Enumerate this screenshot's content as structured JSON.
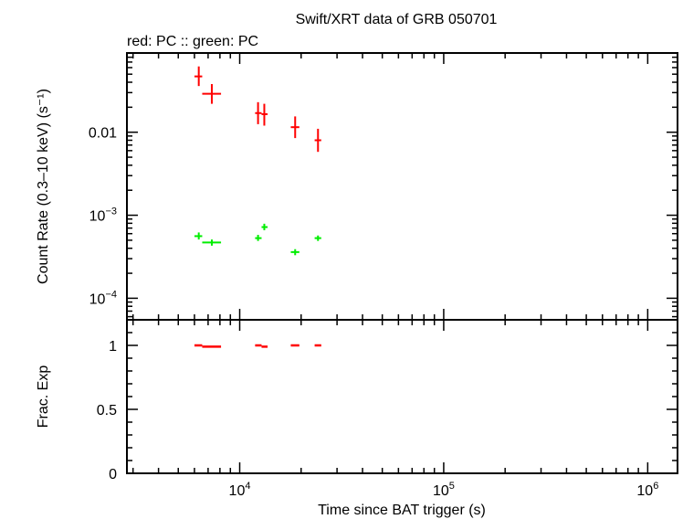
{
  "chart_data": [
    {
      "type": "scatter",
      "title": "Swift/XRT data of GRB 050701",
      "subtitle": "red: PC  :: green: PC",
      "xlabel": "Time since BAT trigger (s)",
      "ylabel": "Count Rate (0.3–10 keV) (s⁻¹)",
      "xscale": "log",
      "yscale": "log",
      "xlim": [
        2800,
        1400000
      ],
      "ylim": [
        5.5e-05,
        0.09
      ],
      "x_ticks": [
        {
          "value": 10000,
          "mantissa": "10",
          "exponent": "4"
        },
        {
          "value": 100000,
          "mantissa": "10",
          "exponent": "5"
        },
        {
          "value": 1000000,
          "mantissa": "10",
          "exponent": "6"
        }
      ],
      "y_ticks": [
        {
          "value": 0.01,
          "mantissa": "0.01",
          "exponent": ""
        },
        {
          "value": 0.001,
          "mantissa": "10",
          "exponent": "−3"
        },
        {
          "value": 0.0001,
          "mantissa": "10",
          "exponent": "−4"
        }
      ],
      "series": [
        {
          "color": "#ff0000",
          "points": [
            {
              "x": 6300,
              "xerr": [
                6000,
                6550
              ],
              "y": 0.047,
              "yerr": [
                0.036,
                0.062
              ]
            },
            {
              "x": 7300,
              "xerr": [
                6550,
                8100
              ],
              "y": 0.029,
              "yerr": [
                0.022,
                0.038
              ]
            },
            {
              "x": 12300,
              "xerr": [
                11900,
                12800
              ],
              "y": 0.017,
              "yerr": [
                0.0125,
                0.023
              ]
            },
            {
              "x": 13200,
              "xerr": [
                12800,
                13700
              ],
              "y": 0.0165,
              "yerr": [
                0.012,
                0.022
              ]
            },
            {
              "x": 18700,
              "xerr": [
                17800,
                19600
              ],
              "y": 0.0115,
              "yerr": [
                0.0085,
                0.0155
              ]
            },
            {
              "x": 24200,
              "xerr": [
                23300,
                25100
              ],
              "y": 0.008,
              "yerr": [
                0.0058,
                0.011
              ]
            }
          ]
        },
        {
          "color": "#00ee00",
          "points": [
            {
              "x": 6300,
              "xerr": [
                6000,
                6550
              ],
              "y": 0.00056,
              "yerr": [
                0.00051,
                0.00062
              ]
            },
            {
              "x": 7300,
              "xerr": [
                6550,
                8100
              ],
              "y": 0.00047,
              "yerr": [
                0.00043,
                0.00051
              ]
            },
            {
              "x": 12300,
              "xerr": [
                11900,
                12800
              ],
              "y": 0.00053,
              "yerr": [
                0.00049,
                0.00058
              ]
            },
            {
              "x": 13200,
              "xerr": [
                12800,
                13700
              ],
              "y": 0.00072,
              "yerr": [
                0.00066,
                0.00079
              ]
            },
            {
              "x": 18700,
              "xerr": [
                17800,
                19600
              ],
              "y": 0.00036,
              "yerr": [
                0.00033,
                0.00039
              ]
            },
            {
              "x": 24200,
              "xerr": [
                23300,
                25100
              ],
              "y": 0.00053,
              "yerr": [
                0.00049,
                0.00057
              ]
            }
          ]
        }
      ]
    },
    {
      "type": "scatter",
      "xlabel": "Time since BAT trigger (s)",
      "ylabel": "Frac. Exp",
      "xscale": "log",
      "yscale": "linear",
      "xlim": [
        2800,
        1400000
      ],
      "ylim": [
        0,
        1.2
      ],
      "y_ticks": [
        {
          "value": 0,
          "label": "0"
        },
        {
          "value": 0.5,
          "label": "0.5"
        },
        {
          "value": 1,
          "label": "1"
        }
      ],
      "series": [
        {
          "color": "#ff0000",
          "points": [
            {
              "x": 6300,
              "xerr": [
                6000,
                6550
              ],
              "y": 1.0
            },
            {
              "x": 7300,
              "xerr": [
                6550,
                8100
              ],
              "y": 0.99
            },
            {
              "x": 12300,
              "xerr": [
                11900,
                12800
              ],
              "y": 1.0
            },
            {
              "x": 13200,
              "xerr": [
                12800,
                13700
              ],
              "y": 0.99
            },
            {
              "x": 18700,
              "xerr": [
                17800,
                19600
              ],
              "y": 1.0
            },
            {
              "x": 24200,
              "xerr": [
                23300,
                25100
              ],
              "y": 1.0
            }
          ]
        }
      ]
    }
  ]
}
